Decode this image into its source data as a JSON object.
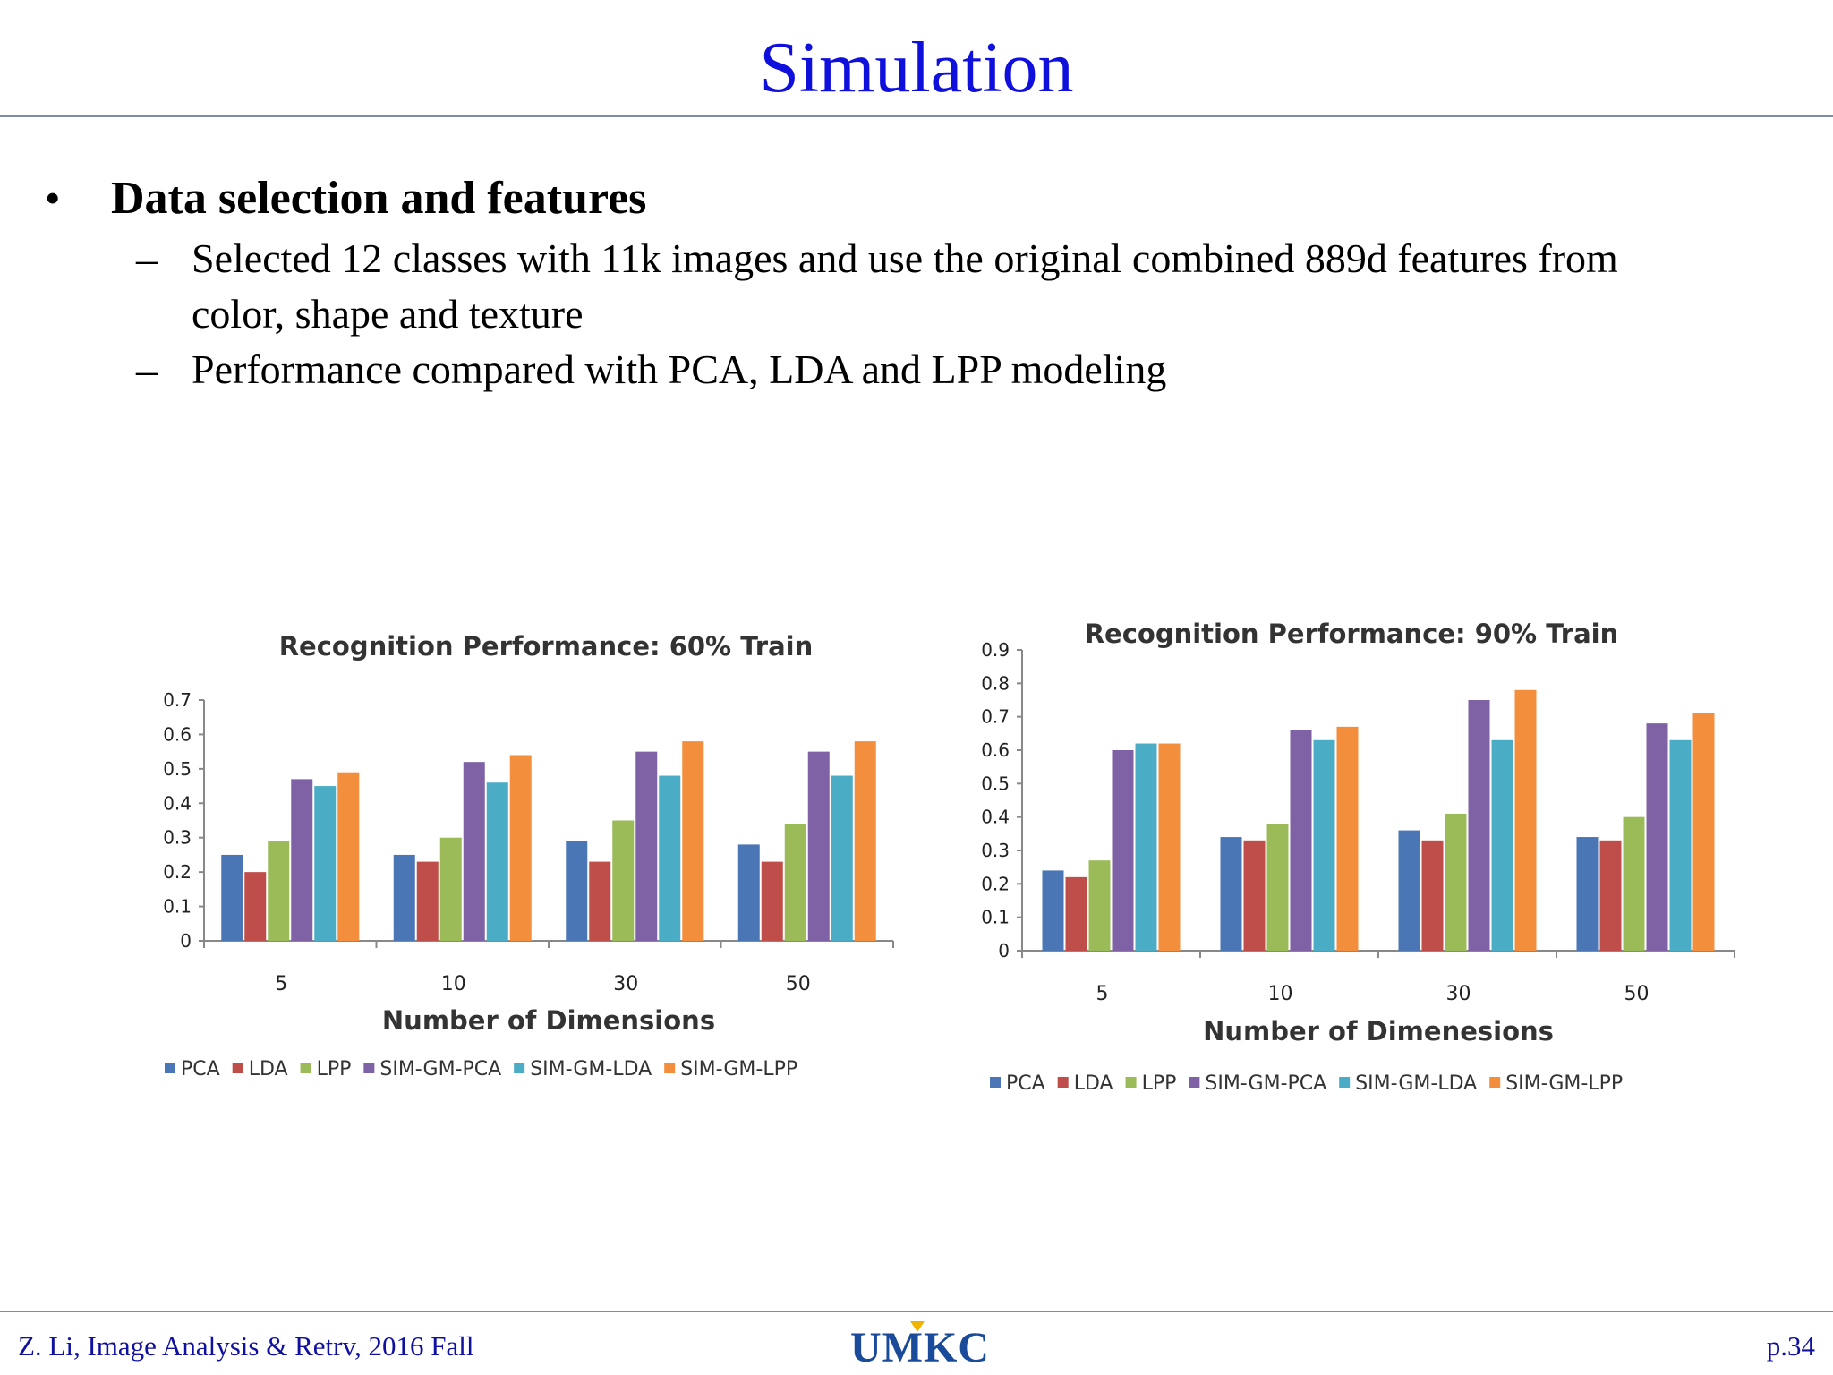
{
  "slide": {
    "title": "Simulation",
    "bullet": "Data selection and features",
    "sub_items": [
      "Selected 12 classes with 11k images and use the original combined 889d features from",
      "color, shape and texture",
      "Performance compared  with PCA, LDA and LPP modeling"
    ],
    "bullet_symbol": "•",
    "dash_symbol": "–"
  },
  "footer": {
    "left": "Z. Li,  Image Analysis & Retrv, 2016 Fall",
    "logo": "UMKC",
    "right": "p.34"
  },
  "colors": {
    "title": "#1010dd",
    "series": [
      "#4a76b5",
      "#bf4d4a",
      "#9bbb59",
      "#7f62a5",
      "#4bacc6",
      "#f38e3c"
    ]
  },
  "chart_data": [
    {
      "type": "bar",
      "title": "Recognition Performance: 60% Train",
      "xlabel": "Number of Dimensions",
      "ylabel": "",
      "categories": [
        "5",
        "10",
        "30",
        "50"
      ],
      "ylim": [
        0,
        0.7
      ],
      "yticks": [
        "0",
        "0.1",
        "0.2",
        "0.3",
        "0.4",
        "0.5",
        "0.6",
        "0.7"
      ],
      "legend": "bottom",
      "grid": false,
      "series": [
        {
          "name": "PCA",
          "values": [
            0.25,
            0.25,
            0.29,
            0.28
          ]
        },
        {
          "name": "LDA",
          "values": [
            0.2,
            0.23,
            0.23,
            0.23
          ]
        },
        {
          "name": "LPP",
          "values": [
            0.29,
            0.3,
            0.35,
            0.34
          ]
        },
        {
          "name": "SIM-GM-PCA",
          "values": [
            0.47,
            0.52,
            0.55,
            0.55
          ]
        },
        {
          "name": "SIM-GM-LDA",
          "values": [
            0.45,
            0.46,
            0.48,
            0.48
          ]
        },
        {
          "name": "SIM-GM-LPP",
          "values": [
            0.49,
            0.54,
            0.58,
            0.58
          ]
        }
      ]
    },
    {
      "type": "bar",
      "title": "Recognition Performance: 90% Train",
      "xlabel": "Number of Dimenesions",
      "ylabel": "",
      "categories": [
        "5",
        "10",
        "30",
        "50"
      ],
      "ylim": [
        0,
        0.9
      ],
      "yticks": [
        "0",
        "0.1",
        "0.2",
        "0.3",
        "0.4",
        "0.5",
        "0.6",
        "0.7",
        "0.8",
        "0.9"
      ],
      "legend": "bottom",
      "grid": false,
      "series": [
        {
          "name": "PCA",
          "values": [
            0.24,
            0.34,
            0.36,
            0.34
          ]
        },
        {
          "name": "LDA",
          "values": [
            0.22,
            0.33,
            0.33,
            0.33
          ]
        },
        {
          "name": "LPP",
          "values": [
            0.27,
            0.38,
            0.41,
            0.4
          ]
        },
        {
          "name": "SIM-GM-PCA",
          "values": [
            0.6,
            0.66,
            0.75,
            0.68
          ]
        },
        {
          "name": "SIM-GM-LDA",
          "values": [
            0.62,
            0.63,
            0.63,
            0.63
          ]
        },
        {
          "name": "SIM-GM-LPP",
          "values": [
            0.62,
            0.67,
            0.78,
            0.71
          ]
        }
      ]
    }
  ]
}
